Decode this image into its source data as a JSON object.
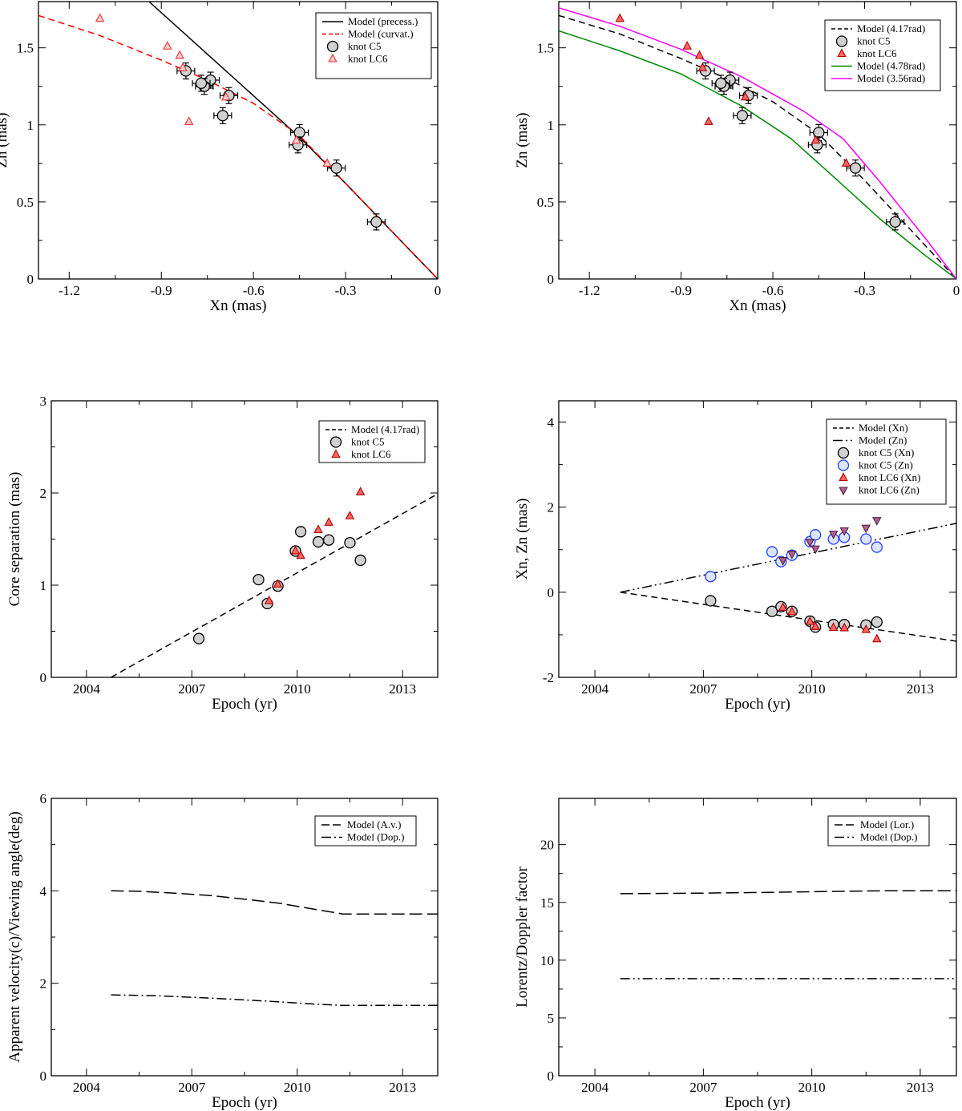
{
  "chart_data": [
    {
      "id": "p1",
      "type": "scatter",
      "xlabel": "Xn (mas)",
      "ylabel": "Zn (mas)",
      "xlim": [
        -1.3,
        0
      ],
      "ylim": [
        0,
        1.8
      ],
      "xticks": [
        -1.2,
        -0.9,
        -0.6,
        -0.3,
        0
      ],
      "xtick_labels": [
        "-1.2",
        "-0.9",
        "-0.6",
        "-0.3",
        "0"
      ],
      "yticks": [
        0,
        0.5,
        1,
        1.5
      ],
      "ytick_labels": [
        "0",
        "0.5",
        "1",
        "1.5"
      ],
      "lines": [
        {
          "name": "Model (precess.)",
          "style": "solid",
          "color": "#000000",
          "x": [
            -0.94,
            -0.45,
            -0.3,
            -0.15,
            0
          ],
          "y": [
            1.8,
            0.92,
            0.62,
            0.31,
            0
          ]
        },
        {
          "name": "Model (curvat.)",
          "style": "dashed",
          "color": "#ff0000",
          "x": [
            -1.3,
            -1.1,
            -0.9,
            -0.75,
            -0.6,
            -0.45,
            -0.3,
            -0.15,
            0
          ],
          "y": [
            1.71,
            1.58,
            1.42,
            1.29,
            1.14,
            0.93,
            0.62,
            0.31,
            0
          ]
        }
      ],
      "points": [
        {
          "name": "knot C5",
          "marker": "circle",
          "face": "#d0d0d0",
          "edge": "#000000",
          "errorbars": true,
          "x": [
            -0.2,
            -0.33,
            -0.45,
            -0.455,
            -0.68,
            -0.7,
            -0.74,
            -0.76,
            -0.77,
            -0.82
          ],
          "y": [
            0.37,
            0.72,
            0.95,
            0.87,
            1.19,
            1.06,
            1.29,
            1.25,
            1.27,
            1.35
          ]
        },
        {
          "name": "knot LC6",
          "marker": "triangle",
          "face": "#ffcccc",
          "edge": "#e83030",
          "errorbars": false,
          "x": [
            -1.1,
            -0.88,
            -0.84,
            -0.83,
            -0.81,
            -0.69,
            -0.46,
            -0.36
          ],
          "y": [
            1.69,
            1.51,
            1.45,
            1.37,
            1.02,
            1.18,
            0.9,
            0.75
          ]
        }
      ],
      "legend": {
        "position": "top-right",
        "entries": [
          "Model (precess.)",
          "Model (curvat.)",
          "knot C5",
          "knot LC6"
        ]
      }
    },
    {
      "id": "p2",
      "type": "scatter",
      "xlabel": "Xn (mas)",
      "ylabel": "Zn (mas)",
      "xlim": [
        -1.3,
        0
      ],
      "ylim": [
        0,
        1.8
      ],
      "xticks": [
        -1.2,
        -0.9,
        -0.6,
        -0.3,
        0
      ],
      "xtick_labels": [
        "-1.2",
        "-0.9",
        "-0.6",
        "-0.3",
        "0"
      ],
      "yticks": [
        0,
        0.5,
        1,
        1.5
      ],
      "ytick_labels": [
        "0",
        "0.5",
        "1",
        "1.5"
      ],
      "lines": [
        {
          "name": "Model (4.17rad)",
          "style": "dashed",
          "color": "#000000",
          "x": [
            -1.3,
            -1.1,
            -0.9,
            -0.75,
            -0.6,
            -0.45,
            -0.3,
            -0.15,
            0
          ],
          "y": [
            1.71,
            1.59,
            1.43,
            1.3,
            1.15,
            0.94,
            0.64,
            0.32,
            0
          ]
        },
        {
          "name": "knot C5",
          "style": "none"
        },
        {
          "name": "knot LC6",
          "style": "none"
        },
        {
          "name": "Model (4.78rad)",
          "style": "solid",
          "color": "#008800",
          "x": [
            -1.3,
            -1.1,
            -0.9,
            -0.7,
            -0.54,
            -0.4,
            -0.25,
            -0.1,
            0
          ],
          "y": [
            1.61,
            1.48,
            1.33,
            1.12,
            0.91,
            0.66,
            0.39,
            0.15,
            0
          ]
        },
        {
          "name": "Model (3.56rad)",
          "style": "solid",
          "color": "#ff00ff",
          "x": [
            -1.3,
            -1.1,
            -0.9,
            -0.7,
            -0.5,
            -0.37,
            -0.25,
            -0.1,
            0
          ],
          "y": [
            1.76,
            1.64,
            1.49,
            1.31,
            1.09,
            0.91,
            0.63,
            0.26,
            0
          ]
        }
      ],
      "points": [
        {
          "name": "knot C5",
          "marker": "circle",
          "face": "#d0d0d0",
          "edge": "#000000",
          "errorbars": true,
          "x": [
            -0.2,
            -0.33,
            -0.45,
            -0.455,
            -0.68,
            -0.7,
            -0.74,
            -0.76,
            -0.77,
            -0.82
          ],
          "y": [
            0.37,
            0.72,
            0.95,
            0.87,
            1.19,
            1.06,
            1.29,
            1.25,
            1.27,
            1.35
          ]
        },
        {
          "name": "knot LC6",
          "marker": "triangle",
          "face": "#ff6666",
          "edge": "#b00000",
          "errorbars": false,
          "x": [
            -1.1,
            -0.88,
            -0.84,
            -0.83,
            -0.81,
            -0.69,
            -0.46,
            -0.36
          ],
          "y": [
            1.69,
            1.51,
            1.45,
            1.37,
            1.02,
            1.18,
            0.9,
            0.75
          ]
        }
      ],
      "legend": {
        "position": "top-right",
        "entries": [
          "Model (4.17rad)",
          "knot C5",
          "knot LC6",
          "Model (4.78rad)",
          "Model (3.56rad)"
        ]
      }
    },
    {
      "id": "p3",
      "type": "scatter",
      "xlabel": "Epoch (yr)",
      "ylabel": "Core separation (mas)",
      "xlim": [
        2003,
        2014
      ],
      "ylim": [
        0,
        3
      ],
      "xticks": [
        2004,
        2007,
        2010,
        2013
      ],
      "xtick_labels": [
        "2004",
        "2007",
        "2010",
        "2013"
      ],
      "yticks": [
        0,
        1,
        2,
        3
      ],
      "ytick_labels": [
        "0",
        "1",
        "2",
        "3"
      ],
      "lines": [
        {
          "name": "Model (4.17rad)",
          "style": "dashed",
          "color": "#000000",
          "x": [
            2004.7,
            2014
          ],
          "y": [
            0,
            1.99
          ]
        }
      ],
      "points": [
        {
          "name": "knot C5",
          "marker": "circle",
          "face": "#d0d0d0",
          "edge": "#000000",
          "errorbars": false,
          "x": [
            2007.2,
            2008.9,
            2009.15,
            2009.45,
            2009.95,
            2010.1,
            2010.6,
            2010.9,
            2011.5,
            2011.8
          ],
          "y": [
            0.42,
            1.06,
            0.8,
            0.99,
            1.37,
            1.58,
            1.47,
            1.49,
            1.46,
            1.27
          ]
        },
        {
          "name": "knot LC6",
          "marker": "triangle",
          "face": "#ff6666",
          "edge": "#b00000",
          "errorbars": false,
          "x": [
            2009.2,
            2009.45,
            2009.95,
            2010.1,
            2010.6,
            2010.9,
            2011.5,
            2011.8
          ],
          "y": [
            0.83,
            1.01,
            1.37,
            1.32,
            1.6,
            1.68,
            1.75,
            2.01
          ]
        }
      ],
      "legend": {
        "position": "top-right",
        "entries": [
          "Model (4.17rad)",
          "knot C5",
          "knot LC6"
        ]
      }
    },
    {
      "id": "p4",
      "type": "scatter",
      "xlabel": "Epoch (yr)",
      "ylabel": "Xn, Zn (mas)",
      "xlim": [
        2003,
        2014
      ],
      "ylim": [
        -2,
        4.5
      ],
      "xticks": [
        2004,
        2007,
        2010,
        2013
      ],
      "xtick_labels": [
        "2004",
        "2007",
        "2010",
        "2013"
      ],
      "yticks": [
        -2,
        0,
        2,
        4
      ],
      "ytick_labels": [
        "-2",
        "0",
        "2",
        "4"
      ],
      "lines": [
        {
          "name": "Model (Xn)",
          "style": "dashed",
          "color": "#000000",
          "x": [
            2004.7,
            2014
          ],
          "y": [
            0,
            -1.15
          ]
        },
        {
          "name": "Model (Zn)",
          "style": "dashdotdot",
          "color": "#000000",
          "x": [
            2004.7,
            2014
          ],
          "y": [
            0,
            1.62
          ]
        }
      ],
      "points": [
        {
          "name": "knot C5 (Xn)",
          "marker": "circle",
          "face": "#d0d0d0",
          "edge": "#000000",
          "errorbars": false,
          "x": [
            2007.2,
            2008.9,
            2009.15,
            2009.45,
            2009.95,
            2010.1,
            2010.6,
            2010.9,
            2011.5,
            2011.8
          ],
          "y": [
            -0.2,
            -0.45,
            -0.34,
            -0.45,
            -0.68,
            -0.82,
            -0.76,
            -0.76,
            -0.77,
            -0.7
          ]
        },
        {
          "name": "knot C5 (Zn)",
          "marker": "circle",
          "face": "#dde4ff",
          "edge": "#1f3fff",
          "errorbars": false,
          "x": [
            2007.2,
            2008.9,
            2009.15,
            2009.45,
            2009.95,
            2010.1,
            2010.6,
            2010.9,
            2011.5,
            2011.8
          ],
          "y": [
            0.37,
            0.95,
            0.72,
            0.87,
            1.19,
            1.35,
            1.25,
            1.29,
            1.25,
            1.06
          ]
        },
        {
          "name": "knot LC6 (Xn)",
          "marker": "triangle",
          "face": "#ff6666",
          "edge": "#b00000",
          "errorbars": false,
          "x": [
            2009.2,
            2009.45,
            2009.95,
            2010.1,
            2010.6,
            2010.9,
            2011.5,
            2011.8
          ],
          "y": [
            -0.36,
            -0.46,
            -0.69,
            -0.81,
            -0.83,
            -0.84,
            -0.88,
            -1.1
          ]
        },
        {
          "name": "knot LC6 (Zn)",
          "marker": "invtriangle",
          "face": "#b06090",
          "edge": "#502040",
          "errorbars": false,
          "x": [
            2009.2,
            2009.45,
            2009.95,
            2010.1,
            2010.6,
            2010.9,
            2011.5,
            2011.8
          ],
          "y": [
            0.75,
            0.9,
            1.18,
            1.02,
            1.37,
            1.45,
            1.51,
            1.69
          ]
        }
      ],
      "legend": {
        "position": "top-right",
        "entries": [
          "Model (Xn)",
          "Model (Zn)",
          "knot C5 (Xn)",
          "knot C5 (Zn)",
          "knot LC6 (Xn)",
          "knot LC6 (Zn)"
        ]
      }
    },
    {
      "id": "p5",
      "type": "line",
      "xlabel": "Epoch (yr)",
      "ylabel": "Apparent velocity(c)/Viewing angle(deg)",
      "xlim": [
        2003,
        2014
      ],
      "ylim": [
        0,
        6
      ],
      "xticks": [
        2004,
        2007,
        2010,
        2013
      ],
      "xtick_labels": [
        "2004",
        "2007",
        "2010",
        "2013"
      ],
      "yticks": [
        0,
        2,
        4,
        6
      ],
      "ytick_labels": [
        "0",
        "2",
        "4",
        "6"
      ],
      "lines": [
        {
          "name": "Model (A.v.)",
          "style": "longdash",
          "color": "#000000",
          "x": [
            2004.7,
            2005.5,
            2006.5,
            2007.5,
            2008.5,
            2009.5,
            2010.5,
            2011.3,
            2012,
            2013,
            2014
          ],
          "y": [
            4.0,
            3.99,
            3.95,
            3.9,
            3.82,
            3.73,
            3.6,
            3.5,
            3.5,
            3.5,
            3.5
          ]
        },
        {
          "name": "Model (Dop.)",
          "style": "dashdot",
          "color": "#000000",
          "x": [
            2004.7,
            2006,
            2007.5,
            2009,
            2010.5,
            2011.3,
            2012.5,
            2014
          ],
          "y": [
            1.75,
            1.73,
            1.68,
            1.62,
            1.55,
            1.52,
            1.52,
            1.52
          ]
        }
      ],
      "points": [],
      "legend": {
        "position": "top-right",
        "entries": [
          "Model (A.v.)",
          "Model (Dop.)"
        ]
      }
    },
    {
      "id": "p6",
      "type": "line",
      "xlabel": "Epoch (yr)",
      "ylabel": "Lorentz/Doppler factor",
      "xlim": [
        2003,
        2014
      ],
      "ylim": [
        0,
        24
      ],
      "xticks": [
        2004,
        2007,
        2010,
        2013
      ],
      "xtick_labels": [
        "2004",
        "2007",
        "2010",
        "2013"
      ],
      "yticks": [
        0,
        5,
        10,
        15,
        20
      ],
      "ytick_labels": [
        "0",
        "5",
        "10",
        "15",
        "20"
      ],
      "lines": [
        {
          "name": "Model (Lor.)",
          "style": "longdash",
          "color": "#000000",
          "x": [
            2004.7,
            2007,
            2009,
            2011,
            2012,
            2014
          ],
          "y": [
            15.75,
            15.8,
            15.88,
            15.97,
            16.0,
            16.0
          ]
        },
        {
          "name": "Model (Dop.)",
          "style": "dashdotdot",
          "color": "#000000",
          "x": [
            2004.7,
            2014
          ],
          "y": [
            8.4,
            8.4
          ]
        }
      ],
      "points": [],
      "legend": {
        "position": "top-right",
        "entries": [
          "Model (Lor.)",
          "Model (Dop.)"
        ]
      }
    }
  ]
}
